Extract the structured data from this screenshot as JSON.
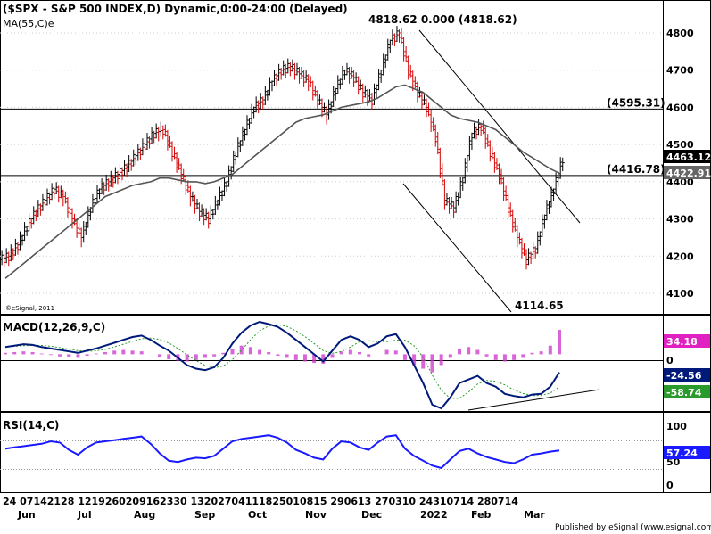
{
  "chart_data": {
    "type": "candlestick",
    "title": "($SPX - S&P 500 INDEX,D) Dynamic,0:00-24:00 (Delayed)",
    "ma_label": "MA(55,C)e",
    "watermark": "©eSignal, 2011",
    "footer": "Published by eSignal (www.esignal.com)",
    "price_axis": {
      "ticks": [
        4800,
        4700,
        4600,
        4500,
        4400,
        4300,
        4200,
        4100
      ],
      "ylim": [
        4060,
        4840
      ]
    },
    "last_price": "4463.12",
    "ma_value": "4422.91",
    "levels": [
      {
        "value": 4818.62,
        "label": "4818.62   0.000 (4818.62)"
      },
      {
        "value": 4595.31,
        "label": "(4595.31)"
      },
      {
        "value": 4416.78,
        "label": "(4416.78)"
      }
    ],
    "low_label": "4114.65",
    "x_axis": {
      "days_row": "24   07142128   1219260209162330   13202704111825010815   290613   270310   24310714   280714",
      "months": [
        "Jun",
        "Jul",
        "Aug",
        "Sep",
        "Oct",
        "Nov",
        "Dec",
        "2022",
        "Feb",
        "Mar"
      ]
    },
    "price_series": [
      4200,
      4230,
      4280,
      4320,
      4350,
      4380,
      4360,
      4300,
      4250,
      4330,
      4380,
      4400,
      4420,
      4440,
      4470,
      4500,
      4530,
      4540,
      4480,
      4420,
      4360,
      4320,
      4300,
      4350,
      4400,
      4480,
      4540,
      4600,
      4620,
      4670,
      4700,
      4710,
      4690,
      4670,
      4620,
      4580,
      4650,
      4700,
      4680,
      4640,
      4620,
      4700,
      4780,
      4800,
      4700,
      4640,
      4600,
      4520,
      4350,
      4330,
      4410,
      4530,
      4550,
      4480,
      4420,
      4330,
      4250,
      4190,
      4220,
      4310,
      4380,
      4463
    ],
    "ma_series": [
      4140,
      4160,
      4180,
      4200,
      4220,
      4240,
      4260,
      4280,
      4300,
      4320,
      4340,
      4360,
      4370,
      4380,
      4390,
      4395,
      4400,
      4410,
      4410,
      4405,
      4400,
      4400,
      4395,
      4400,
      4410,
      4420,
      4440,
      4460,
      4480,
      4500,
      4520,
      4540,
      4560,
      4570,
      4575,
      4580,
      4590,
      4600,
      4605,
      4610,
      4615,
      4625,
      4640,
      4655,
      4660,
      4650,
      4640,
      4620,
      4600,
      4580,
      4570,
      4565,
      4560,
      4550,
      4540,
      4520,
      4500,
      4480,
      4465,
      4450,
      4435,
      4423
    ],
    "macd": {
      "label": "MACD(12,26,9,C)",
      "ticks": [
        0
      ],
      "ylim": [
        -80,
        50
      ],
      "values": {
        "hist": "34.18",
        "macd": "-24.56",
        "signal": "-58.74"
      },
      "macd_series": [
        10,
        12,
        14,
        13,
        10,
        8,
        6,
        4,
        2,
        5,
        8,
        12,
        16,
        20,
        24,
        26,
        20,
        12,
        5,
        -5,
        -15,
        -20,
        -22,
        -18,
        -5,
        15,
        30,
        40,
        45,
        42,
        38,
        30,
        20,
        10,
        0,
        -10,
        5,
        20,
        25,
        20,
        10,
        15,
        25,
        28,
        10,
        -15,
        -40,
        -70,
        -75,
        -60,
        -40,
        -35,
        -30,
        -40,
        -45,
        -55,
        -58,
        -60,
        -56,
        -55,
        -45,
        -25
      ],
      "hist_series": [
        2,
        3,
        4,
        3,
        1,
        -1,
        -3,
        -4,
        -5,
        -2,
        1,
        3,
        5,
        6,
        5,
        4,
        0,
        -4,
        -7,
        -9,
        -10,
        -8,
        -5,
        -3,
        2,
        8,
        12,
        10,
        6,
        3,
        -2,
        -5,
        -8,
        -10,
        -12,
        -13,
        -5,
        4,
        6,
        3,
        -3,
        0,
        6,
        5,
        -8,
        -15,
        -20,
        -25,
        -15,
        -5,
        8,
        10,
        6,
        -3,
        -8,
        -10,
        -8,
        -5,
        2,
        4,
        12,
        34
      ]
    },
    "rsi": {
      "label": "RSI(14,C)",
      "ticks": [
        100,
        50,
        0
      ],
      "ylim": [
        0,
        100
      ],
      "value": "57.24",
      "series": [
        60,
        62,
        64,
        66,
        68,
        72,
        70,
        58,
        50,
        62,
        70,
        72,
        74,
        76,
        78,
        80,
        68,
        52,
        40,
        38,
        42,
        45,
        44,
        48,
        60,
        72,
        76,
        78,
        80,
        82,
        78,
        70,
        58,
        52,
        45,
        42,
        60,
        72,
        70,
        62,
        58,
        70,
        80,
        82,
        60,
        48,
        40,
        32,
        28,
        42,
        56,
        60,
        52,
        46,
        42,
        38,
        36,
        42,
        50,
        52,
        55,
        57
      ]
    }
  }
}
